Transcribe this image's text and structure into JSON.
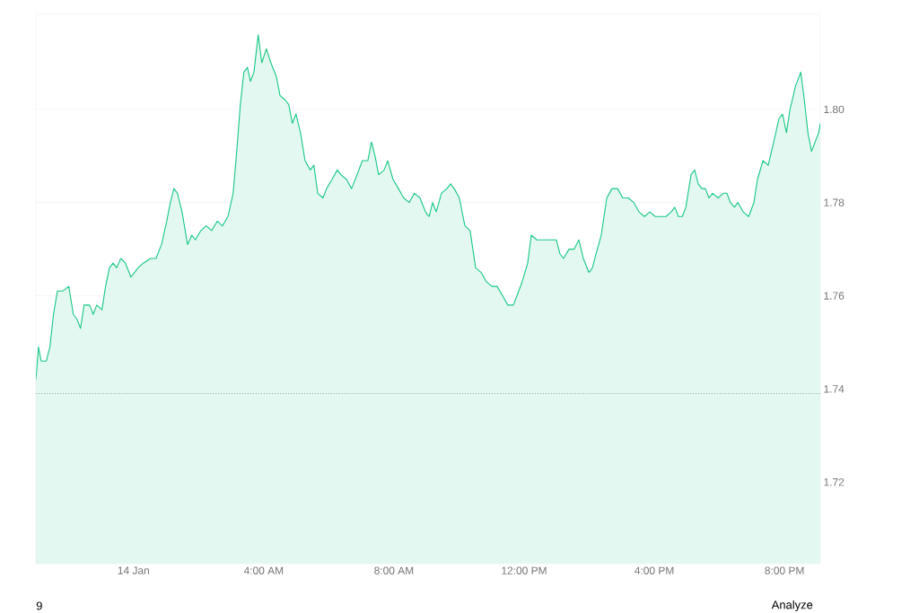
{
  "chart_data": {
    "type": "area",
    "color": "#16c784",
    "x": [
      -3.0,
      -2.92,
      -2.84,
      -2.68,
      -2.57,
      -2.46,
      -2.34,
      -2.18,
      -1.99,
      -1.85,
      -1.74,
      -1.63,
      -1.52,
      -1.35,
      -1.24,
      -1.13,
      -0.97,
      -0.86,
      -0.74,
      -0.63,
      -0.52,
      -0.39,
      -0.25,
      -0.08,
      0.14,
      0.3,
      0.52,
      0.69,
      0.86,
      1.02,
      1.13,
      1.24,
      1.35,
      1.49,
      1.66,
      1.79,
      1.9,
      2.07,
      2.23,
      2.4,
      2.57,
      2.73,
      2.9,
      3.06,
      3.17,
      3.28,
      3.39,
      3.5,
      3.59,
      3.7,
      3.83,
      3.94,
      4.08,
      4.22,
      4.39,
      4.5,
      4.66,
      4.77,
      4.88,
      4.99,
      5.13,
      5.27,
      5.43,
      5.54,
      5.66,
      5.82,
      5.93,
      6.1,
      6.26,
      6.37,
      6.54,
      6.7,
      6.87,
      7.03,
      7.2,
      7.31,
      7.42,
      7.53,
      7.7,
      7.81,
      7.97,
      8.14,
      8.3,
      8.47,
      8.63,
      8.8,
      8.97,
      9.08,
      9.19,
      9.3,
      9.46,
      9.63,
      9.74,
      9.85,
      10.01,
      10.18,
      10.34,
      10.51,
      10.68,
      10.84,
      11.01,
      11.17,
      11.34,
      11.5,
      11.67,
      11.78,
      11.94,
      12.11,
      12.22,
      12.39,
      12.55,
      12.77,
      12.99,
      13.1,
      13.21,
      13.38,
      13.54,
      13.68,
      13.82,
      13.99,
      14.1,
      14.21,
      14.37,
      14.54,
      14.7,
      14.87,
      15.03,
      15.2,
      15.37,
      15.53,
      15.7,
      15.86,
      16.03,
      16.19,
      16.36,
      16.52,
      16.63,
      16.74,
      16.86,
      16.97,
      17.13,
      17.24,
      17.35,
      17.46,
      17.57,
      17.68,
      17.79,
      17.96,
      18.12,
      18.23,
      18.34,
      18.46,
      18.57,
      18.73,
      18.9,
      19.06,
      19.17,
      19.34,
      19.5,
      19.67,
      19.83,
      19.94,
      20.06,
      20.17,
      20.34,
      20.5,
      20.61,
      20.72,
      20.83,
      20.94,
      21.05,
      21.1
    ],
    "values": [
      1.742,
      1.749,
      1.746,
      1.746,
      1.749,
      1.756,
      1.761,
      1.761,
      1.762,
      1.756,
      1.755,
      1.753,
      1.758,
      1.758,
      1.756,
      1.758,
      1.757,
      1.762,
      1.766,
      1.767,
      1.766,
      1.768,
      1.767,
      1.764,
      1.766,
      1.767,
      1.768,
      1.768,
      1.771,
      1.776,
      1.78,
      1.783,
      1.782,
      1.778,
      1.771,
      1.773,
      1.772,
      1.774,
      1.775,
      1.774,
      1.776,
      1.775,
      1.777,
      1.782,
      1.791,
      1.801,
      1.808,
      1.809,
      1.806,
      1.808,
      1.816,
      1.81,
      1.813,
      1.81,
      1.807,
      1.803,
      1.802,
      1.801,
      1.797,
      1.799,
      1.795,
      1.789,
      1.787,
      1.788,
      1.782,
      1.781,
      1.783,
      1.785,
      1.787,
      1.786,
      1.785,
      1.783,
      1.786,
      1.789,
      1.789,
      1.793,
      1.79,
      1.786,
      1.787,
      1.789,
      1.785,
      1.783,
      1.781,
      1.78,
      1.782,
      1.781,
      1.778,
      1.777,
      1.78,
      1.778,
      1.782,
      1.783,
      1.784,
      1.783,
      1.781,
      1.775,
      1.774,
      1.766,
      1.765,
      1.763,
      1.762,
      1.762,
      1.76,
      1.758,
      1.758,
      1.76,
      1.763,
      1.767,
      1.773,
      1.772,
      1.772,
      1.772,
      1.772,
      1.769,
      1.768,
      1.77,
      1.77,
      1.772,
      1.768,
      1.765,
      1.766,
      1.769,
      1.773,
      1.781,
      1.783,
      1.783,
      1.781,
      1.781,
      1.78,
      1.778,
      1.777,
      1.778,
      1.777,
      1.777,
      1.777,
      1.778,
      1.779,
      1.777,
      1.777,
      1.779,
      1.786,
      1.787,
      1.784,
      1.783,
      1.783,
      1.781,
      1.782,
      1.781,
      1.782,
      1.782,
      1.78,
      1.779,
      1.78,
      1.778,
      1.777,
      1.78,
      1.785,
      1.789,
      1.788,
      1.793,
      1.798,
      1.799,
      1.795,
      1.8,
      1.805,
      1.808,
      1.802,
      1.795,
      1.791,
      1.793,
      1.795,
      1.797
    ],
    "xlim": [
      -3.0,
      21.1
    ],
    "ylim": [
      1.7025,
      1.8204
    ],
    "xticks": [
      {
        "value": 0,
        "label": "14 Jan"
      },
      {
        "value": 4,
        "label": "4:00 AM"
      },
      {
        "value": 8,
        "label": "8:00 AM"
      },
      {
        "value": 12,
        "label": "12:00 PM"
      },
      {
        "value": 16,
        "label": "4:00 PM"
      },
      {
        "value": 20,
        "label": "8:00 PM"
      }
    ],
    "yticks": [
      {
        "value": 1.72,
        "label": "1.72"
      },
      {
        "value": 1.74,
        "label": "1.74"
      },
      {
        "value": 1.76,
        "label": "1.76"
      },
      {
        "value": 1.78,
        "label": "1.78"
      },
      {
        "value": 1.8,
        "label": "1.80"
      }
    ],
    "grid": "y",
    "marker": "none",
    "line_style": "solid",
    "ref_lines": [
      {
        "axis": "y",
        "value": 1.739,
        "color": "#9aa0a6",
        "line_style": "dotted"
      }
    ],
    "annotations": [
      "9",
      "Analyze"
    ]
  }
}
